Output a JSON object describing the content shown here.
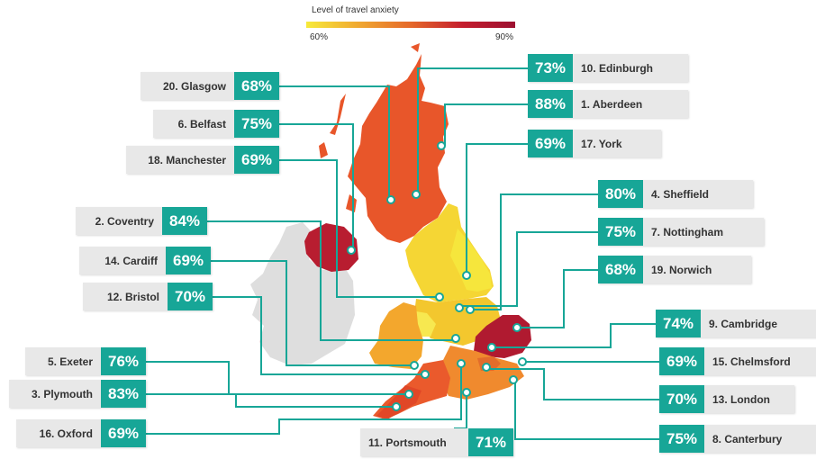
{
  "legend": {
    "title": "Level of travel anxiety",
    "min_label": "60%",
    "max_label": "90%",
    "colors": [
      "#f7ea3a",
      "#f0a830",
      "#e5682a",
      "#c41d2d",
      "#9c1030"
    ]
  },
  "accent_color": "#17a697",
  "cities": [
    {
      "rank_name": "1. Aberdeen",
      "value": "88%",
      "anxiety": 88
    },
    {
      "rank_name": "2. Coventry",
      "value": "84%",
      "anxiety": 84
    },
    {
      "rank_name": "3. Plymouth",
      "value": "83%",
      "anxiety": 83
    },
    {
      "rank_name": "4. Sheffield",
      "value": "80%",
      "anxiety": 80
    },
    {
      "rank_name": "5. Exeter",
      "value": "76%",
      "anxiety": 76
    },
    {
      "rank_name": "6. Belfast",
      "value": "75%",
      "anxiety": 75
    },
    {
      "rank_name": "7. Nottingham",
      "value": "75%",
      "anxiety": 75
    },
    {
      "rank_name": "8. Canterbury",
      "value": "75%",
      "anxiety": 75
    },
    {
      "rank_name": "9. Cambridge",
      "value": "74%",
      "anxiety": 74
    },
    {
      "rank_name": "10. Edinburgh",
      "value": "73%",
      "anxiety": 73
    },
    {
      "rank_name": "11. Portsmouth",
      "value": "71%",
      "anxiety": 71
    },
    {
      "rank_name": "12. Bristol",
      "value": "70%",
      "anxiety": 70
    },
    {
      "rank_name": "13. London",
      "value": "70%",
      "anxiety": 70
    },
    {
      "rank_name": "14. Cardiff",
      "value": "69%",
      "anxiety": 69
    },
    {
      "rank_name": "15. Chelmsford",
      "value": "69%",
      "anxiety": 69
    },
    {
      "rank_name": "16. Oxford",
      "value": "69%",
      "anxiety": 69
    },
    {
      "rank_name": "17. York",
      "value": "69%",
      "anxiety": 69
    },
    {
      "rank_name": "18. Manchester",
      "value": "69%",
      "anxiety": 69
    },
    {
      "rank_name": "19. Norwich",
      "value": "68%",
      "anxiety": 68
    },
    {
      "rank_name": "20. Glasgow",
      "value": "68%",
      "anxiety": 68
    }
  ]
}
